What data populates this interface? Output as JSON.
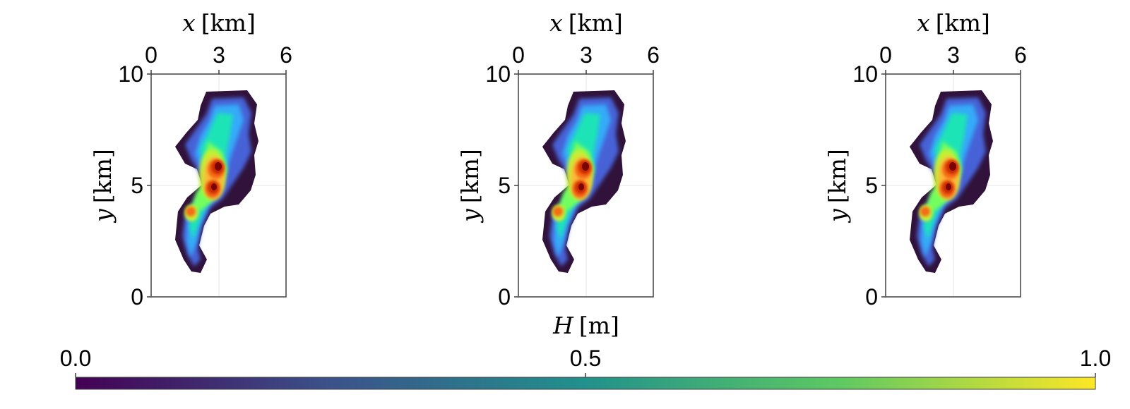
{
  "chart_data": [
    {
      "type": "heatmap",
      "panel": 1,
      "xlabel_var": "x",
      "xlabel_unit": "[km]",
      "ylabel_var": "y",
      "ylabel_unit": "[km]",
      "xlim": [
        0,
        6
      ],
      "ylim": [
        0,
        10
      ],
      "xticks": [
        "0",
        "3",
        "6"
      ],
      "yticks": [
        "0",
        "5",
        "10"
      ],
      "x_axis_position": "top",
      "grid": true
    },
    {
      "type": "heatmap",
      "panel": 2,
      "xlabel_var": "x",
      "xlabel_unit": "[km]",
      "ylabel_var": "y",
      "ylabel_unit": "[km]",
      "xlim": [
        0,
        6
      ],
      "ylim": [
        0,
        10
      ],
      "xticks": [
        "0",
        "3",
        "6"
      ],
      "yticks": [
        "0",
        "5",
        "10"
      ],
      "x_axis_position": "top",
      "grid": true,
      "caption_var": "H",
      "caption_unit": "[m]"
    },
    {
      "type": "heatmap",
      "panel": 3,
      "xlabel_var": "x",
      "xlabel_unit": "[km]",
      "ylabel_var": "y",
      "ylabel_unit": "[km]",
      "xlim": [
        0,
        6
      ],
      "ylim": [
        0,
        10
      ],
      "xticks": [
        "0",
        "3",
        "6"
      ],
      "yticks": [
        "0",
        "5",
        "10"
      ],
      "x_axis_position": "top",
      "grid": true
    }
  ],
  "colorbar": {
    "min": 0.0,
    "max": 1.0,
    "ticks": [
      "0.0",
      "0.5",
      "1.0"
    ],
    "colormap": "viridis",
    "colors": [
      "#440154",
      "#3b528b",
      "#21918c",
      "#5ec962",
      "#fde725"
    ]
  },
  "heatmap_colormap": {
    "name": "turbo",
    "colors": [
      "#30123b",
      "#4662d7",
      "#36aaf9",
      "#1ae4b6",
      "#72fe5e",
      "#c7ef34",
      "#fabb38",
      "#f66b19",
      "#c92903",
      "#7a0403"
    ]
  }
}
